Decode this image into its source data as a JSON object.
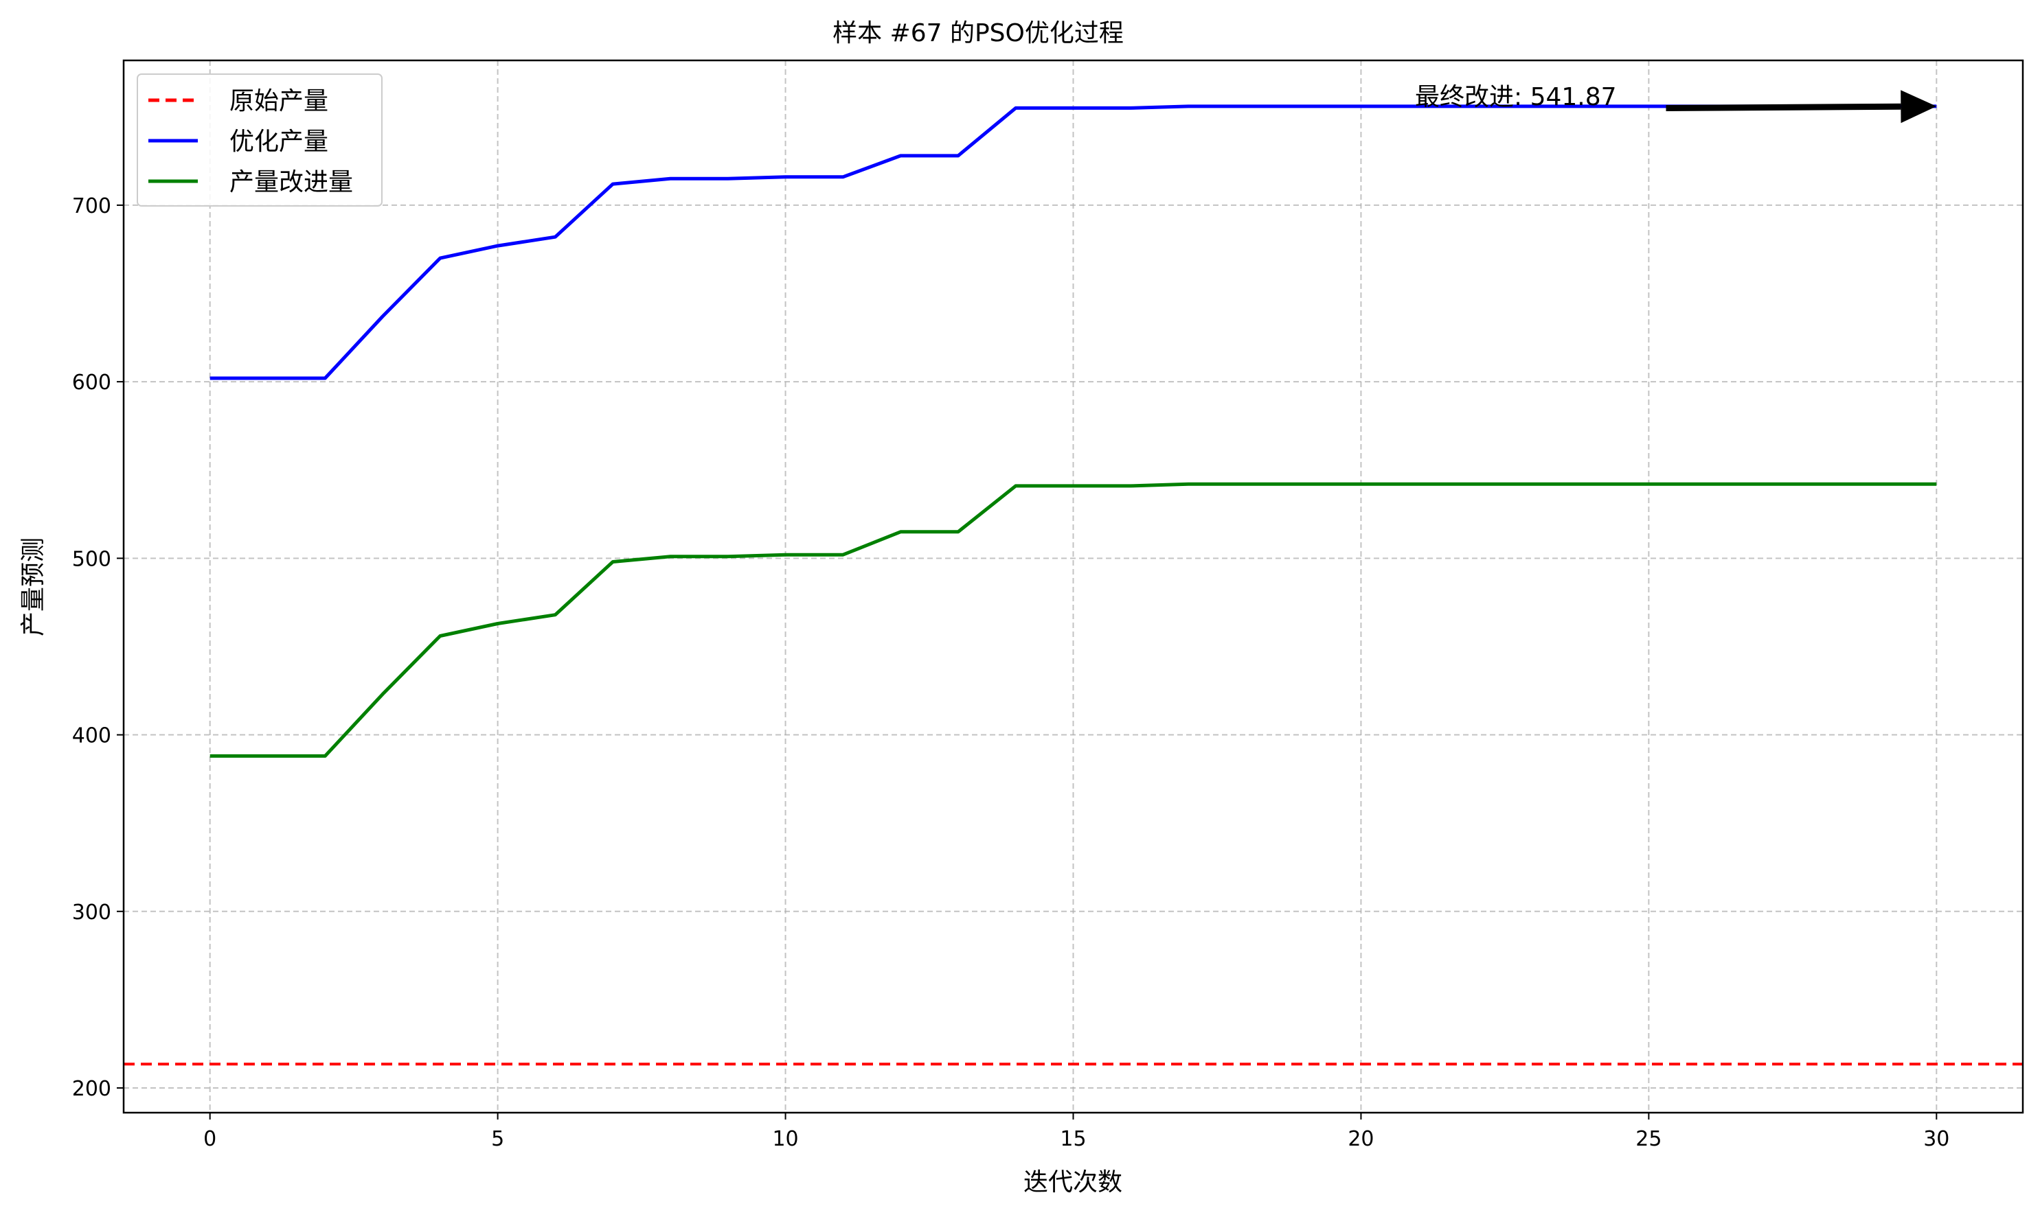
{
  "chart_data": {
    "type": "line",
    "title": "样本 #67 的PSO优化过程",
    "xlabel": "迭代次数",
    "ylabel": "产量预测",
    "xlim": [
      -1.5,
      31.5
    ],
    "ylim": [
      186,
      782
    ],
    "xticks": [
      0,
      5,
      10,
      15,
      20,
      25,
      30
    ],
    "yticks": [
      200,
      300,
      400,
      500,
      600,
      700
    ],
    "grid": true,
    "legend_position": "top-left",
    "x": [
      0,
      1,
      2,
      3,
      4,
      5,
      6,
      7,
      8,
      9,
      10,
      11,
      12,
      13,
      14,
      15,
      16,
      17,
      18,
      19,
      20,
      21,
      22,
      23,
      24,
      25,
      26,
      27,
      28,
      29,
      30
    ],
    "series": [
      {
        "name": "原始产量",
        "style": "dashed-horizontal",
        "color": "#ff0000",
        "value": 213.5
      },
      {
        "name": "优化产量",
        "style": "solid",
        "color": "#0000ff",
        "values": [
          602,
          602,
          602,
          637,
          670,
          677,
          682,
          712,
          715,
          715,
          716,
          716,
          728,
          728,
          755,
          755,
          755,
          756,
          756,
          756,
          756,
          756,
          756,
          756,
          756,
          756,
          756,
          756,
          756,
          756,
          756
        ]
      },
      {
        "name": "产量改进量",
        "style": "solid",
        "color": "#008000",
        "values": [
          388,
          388,
          388,
          423,
          456,
          463,
          468,
          498,
          501,
          501,
          502,
          502,
          515,
          515,
          541,
          541,
          541,
          542,
          542,
          542,
          542,
          542,
          542,
          542,
          542,
          542,
          542,
          542,
          542,
          542,
          542
        ]
      }
    ],
    "annotation": {
      "text": "最终改进: 541.87",
      "arrow_from_x": 25.3,
      "arrow_from_y": 755,
      "arrow_to_x": 30,
      "arrow_to_y": 756
    }
  }
}
